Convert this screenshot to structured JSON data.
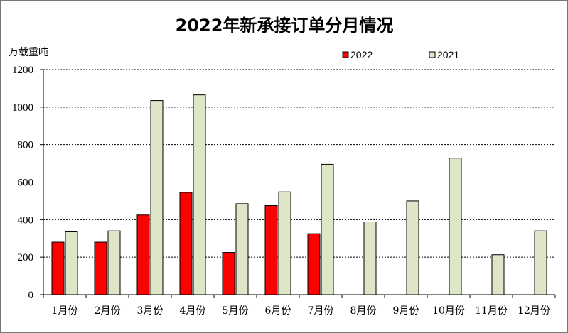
{
  "chart_data": {
    "type": "bar",
    "title": "2022年新承接订单分月情况",
    "ylabel": "万载重吨",
    "xlabel": "",
    "ylim": [
      0,
      1200
    ],
    "yticks": [
      "0",
      "200",
      "400",
      "600",
      "800",
      "1000",
      "1200"
    ],
    "grid": true,
    "legend_position": "top",
    "categories": [
      "1月份",
      "2月份",
      "3月份",
      "4月份",
      "5月份",
      "6月份",
      "7月份",
      "8月份",
      "9月份",
      "10月份",
      "11月份",
      "12月份"
    ],
    "series": [
      {
        "name": "2022",
        "color": "#ff0000",
        "values": [
          280,
          280,
          425,
          545,
          225,
          475,
          325,
          null,
          null,
          null,
          null,
          null
        ]
      },
      {
        "name": "2021",
        "color": "#dde6c6",
        "values": [
          335,
          340,
          1035,
          1065,
          485,
          548,
          695,
          388,
          500,
          728,
          213,
          340
        ]
      }
    ]
  }
}
